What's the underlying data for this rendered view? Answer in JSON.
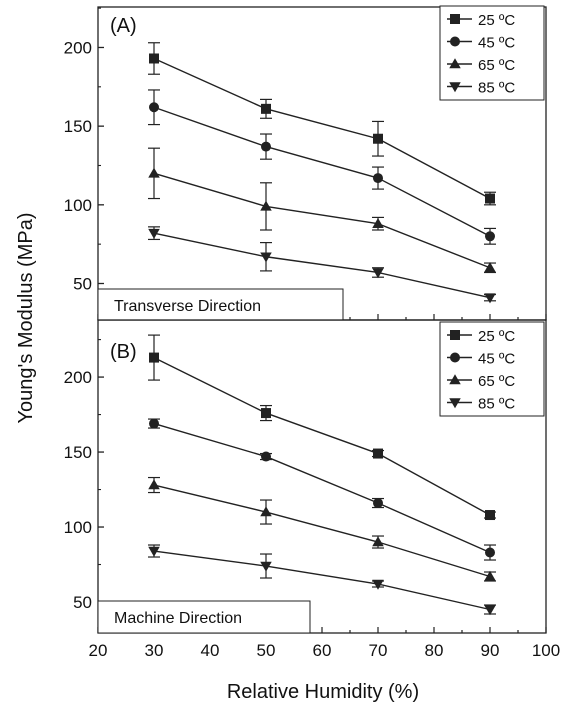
{
  "figure": {
    "ylabel": "Young's Modulus (MPa)",
    "xlabel": "Relative Humidity (%)"
  },
  "colors": {
    "line": "#222222",
    "background": "#ffffff"
  },
  "chart_data": [
    {
      "type": "line",
      "panel_label": "(A)",
      "direction_label": "Transverse Direction",
      "xlim": [
        20,
        100
      ],
      "ylim": [
        25,
        225
      ],
      "yticks": [
        50,
        100,
        150,
        200
      ],
      "legend_position": "top-right",
      "grid": false,
      "x": [
        30,
        50,
        70,
        90
      ],
      "series": [
        {
          "name": "25 ºC",
          "marker": "square",
          "values": [
            193,
            161,
            142,
            104
          ],
          "err": [
            10,
            6,
            11,
            4
          ]
        },
        {
          "name": "45 ºC",
          "marker": "circle",
          "values": [
            162,
            137,
            117,
            80
          ],
          "err": [
            11,
            8,
            7,
            5
          ]
        },
        {
          "name": "65 ºC",
          "marker": "triangle-up",
          "values": [
            120,
            99,
            88,
            60
          ],
          "err": [
            16,
            15,
            4,
            3
          ]
        },
        {
          "name": "85 ºC",
          "marker": "triangle-down",
          "values": [
            82,
            67,
            57,
            41
          ],
          "err": [
            4,
            9,
            3,
            2
          ]
        }
      ]
    },
    {
      "type": "line",
      "panel_label": "(B)",
      "direction_label": "Machine Direction",
      "xlim": [
        20,
        100
      ],
      "ylim": [
        30,
        235
      ],
      "yticks": [
        50,
        100,
        150,
        200
      ],
      "xticks": [
        20,
        30,
        40,
        50,
        60,
        70,
        80,
        90,
        100
      ],
      "legend_position": "top-right",
      "grid": false,
      "x": [
        30,
        50,
        70,
        90
      ],
      "series": [
        {
          "name": "25 ºC",
          "marker": "square",
          "values": [
            213,
            176,
            149,
            108
          ],
          "err": [
            15,
            5,
            2,
            2
          ]
        },
        {
          "name": "45 ºC",
          "marker": "circle",
          "values": [
            169,
            147,
            116,
            83
          ],
          "err": [
            3,
            2,
            3,
            5
          ]
        },
        {
          "name": "65 ºC",
          "marker": "triangle-up",
          "values": [
            128,
            110,
            90,
            67
          ],
          "err": [
            5,
            8,
            4,
            3
          ]
        },
        {
          "name": "85 ºC",
          "marker": "triangle-down",
          "values": [
            84,
            74,
            62,
            45
          ],
          "err": [
            4,
            8,
            2,
            3
          ]
        }
      ]
    }
  ]
}
